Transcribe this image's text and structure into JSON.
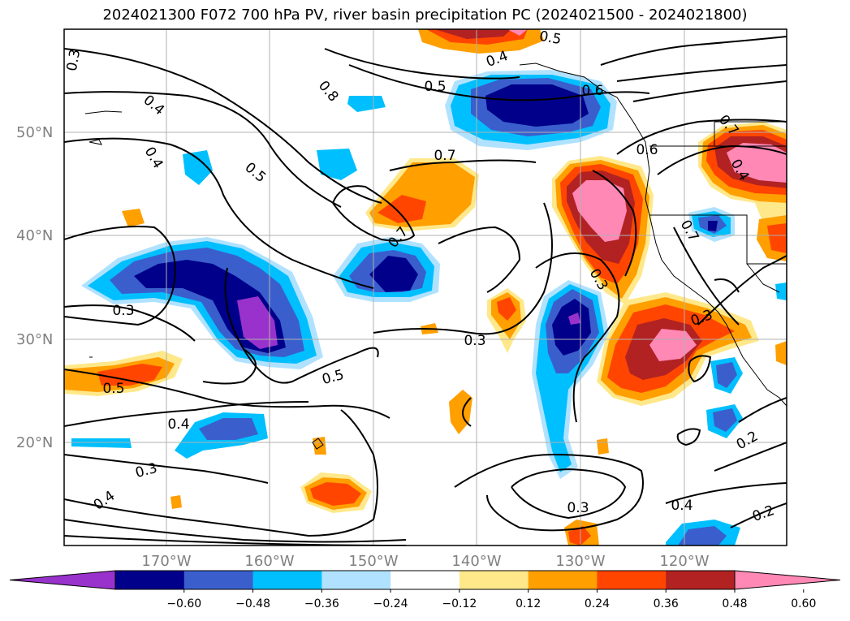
{
  "title": "2024021300 F072 700 hPa PV, river basin precipitation PC (2024021500 - 2024021800)",
  "map": {
    "lat_labels": [
      "50°N",
      "40°N",
      "30°N",
      "20°N"
    ],
    "lon_labels": [
      "170°W",
      "160°W",
      "150°W",
      "140°W",
      "130°W",
      "120°W"
    ],
    "contour_labels": [
      "0.3",
      "0.4",
      "0.4",
      "0.5",
      "0.8",
      "0.5",
      "0.4",
      "0.6",
      "0.5",
      "0.7",
      "0.7",
      "0.6",
      "0.7",
      "0.3",
      "0.3",
      "0.5",
      "0.5",
      "0.4",
      "0.3",
      "0.4",
      "0.3",
      "0.4",
      "0.2",
      "0.2",
      "0.4",
      "0.7",
      "0.3",
      "0.3"
    ],
    "shading_colors": [
      "#9932cc",
      "#00008b",
      "#3a5fcd",
      "#00bfff",
      "#b0e2ff",
      "#ffffff",
      "#ffe88a",
      "#ff9f00",
      "#ff4500",
      "#b22222",
      "#ff88b5"
    ]
  },
  "colorbar": {
    "tick_labels": [
      "−0.60",
      "−0.48",
      "−0.36",
      "−0.24",
      "−0.12",
      "0.12",
      "0.24",
      "0.36",
      "0.48",
      "0.60"
    ],
    "colors": [
      "#9932cc",
      "#00008b",
      "#3a5fcd",
      "#00bfff",
      "#b0e2ff",
      "#ffffff",
      "#ffe88a",
      "#ff9f00",
      "#ff4500",
      "#b22222",
      "#ff88b5"
    ]
  }
}
